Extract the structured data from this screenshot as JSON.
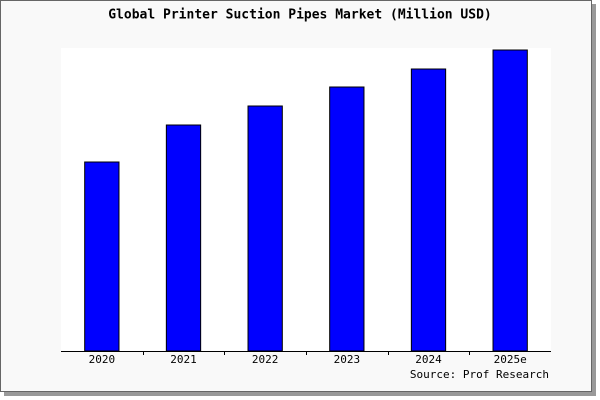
{
  "chart_data": {
    "type": "bar",
    "title": "Global Printer Suction Pipes Market (Million USD)",
    "categories": [
      "2020",
      "2021",
      "2022",
      "2023",
      "2024",
      "2025e"
    ],
    "values": [
      189,
      226,
      245,
      264,
      282,
      301
    ],
    "color": "#0000ff",
    "ylim": [
      0,
      303
    ],
    "grid": false,
    "source": "Source: Prof Research"
  }
}
